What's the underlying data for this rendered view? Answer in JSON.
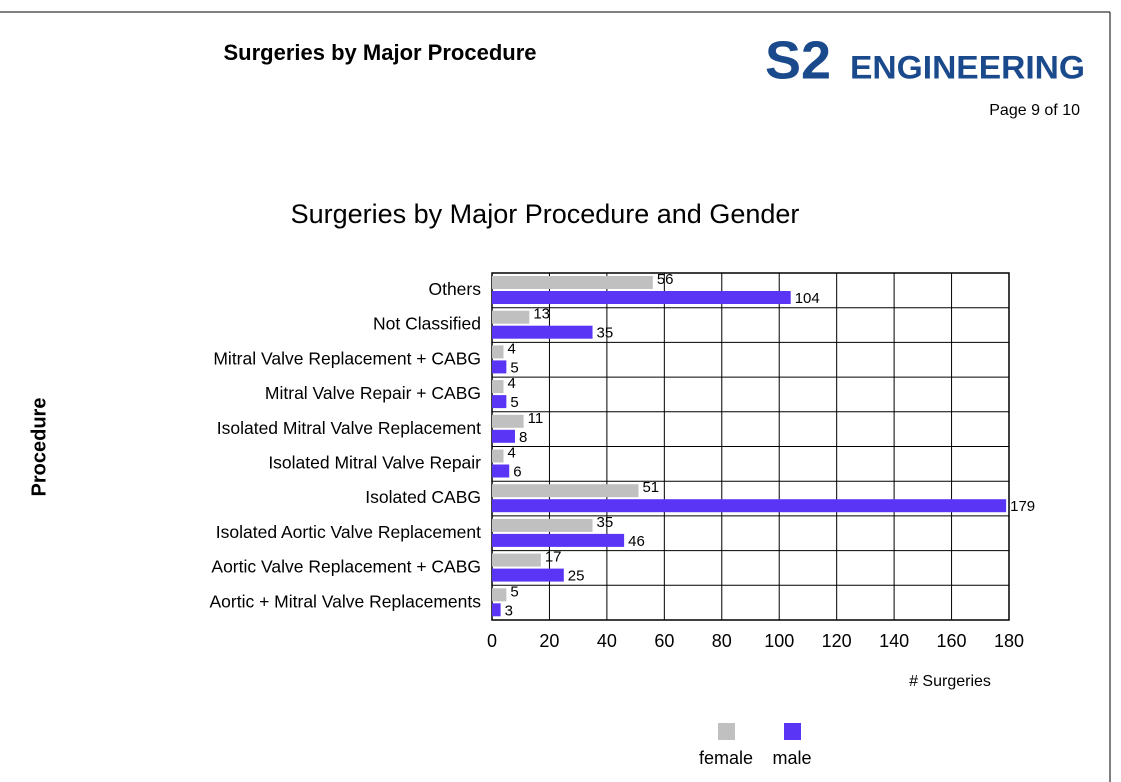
{
  "header": {
    "title": "Surgeries by Major Procedure",
    "logo_mark": "S2",
    "logo_text": "ENGINEERING",
    "page": "Page 9 of 10"
  },
  "chart_data": {
    "type": "hbar",
    "title": "Surgeries by Major Procedure and Gender",
    "xlabel": "# Surgeries",
    "ylabel": "Procedure",
    "categories": [
      "Others",
      "Not Classified",
      "Mitral Valve Replacement + CABG",
      "Mitral Valve Repair + CABG",
      "Isolated Mitral Valve Replacement",
      "Isolated Mitral Valve Repair",
      "Isolated CABG",
      "Isolated Aortic Valve Replacement",
      "Aortic Valve Replacement + CABG",
      "Aortic + Mitral Valve Replacements"
    ],
    "series": [
      {
        "name": "female",
        "color": "#c0c0c0",
        "values": [
          56,
          13,
          4,
          4,
          11,
          4,
          51,
          35,
          17,
          5
        ]
      },
      {
        "name": "male",
        "color": "#5b35f5",
        "values": [
          104,
          35,
          5,
          5,
          8,
          6,
          179,
          46,
          25,
          3
        ]
      }
    ],
    "xlim": [
      0,
      180
    ],
    "xticks": [
      0,
      20,
      40,
      60,
      80,
      100,
      120,
      140,
      160,
      180
    ],
    "grid": true,
    "legend": "bottom"
  }
}
